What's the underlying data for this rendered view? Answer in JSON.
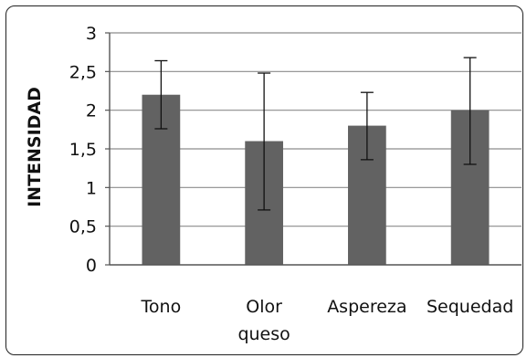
{
  "chart_data": {
    "type": "bar",
    "categories": [
      "Tono",
      "Olor queso",
      "Aspereza",
      "Sequedad"
    ],
    "category_lines": [
      [
        "Tono"
      ],
      [
        "Olor",
        "queso"
      ],
      [
        "Aspereza"
      ],
      [
        "Sequedad"
      ]
    ],
    "values": [
      2.2,
      1.6,
      1.8,
      2.0
    ],
    "error_bars": [
      {
        "low": 1.76,
        "high": 2.64
      },
      {
        "low": 0.71,
        "high": 2.48
      },
      {
        "low": 1.36,
        "high": 2.23
      },
      {
        "low": 1.3,
        "high": 2.68
      }
    ],
    "title": "",
    "xlabel": "",
    "ylabel": "INTENSIDAD",
    "ylim": [
      0,
      3
    ],
    "yticks": [
      0,
      0.5,
      1,
      1.5,
      2,
      2.5,
      3
    ],
    "ytick_labels": [
      "0",
      "0,5",
      "1",
      "1,5",
      "2",
      "2,5",
      "3"
    ],
    "grid": true,
    "legend": "none",
    "bar_color": "#626262",
    "grid_color": "#8c8c8c",
    "axis_color": "#555555"
  }
}
